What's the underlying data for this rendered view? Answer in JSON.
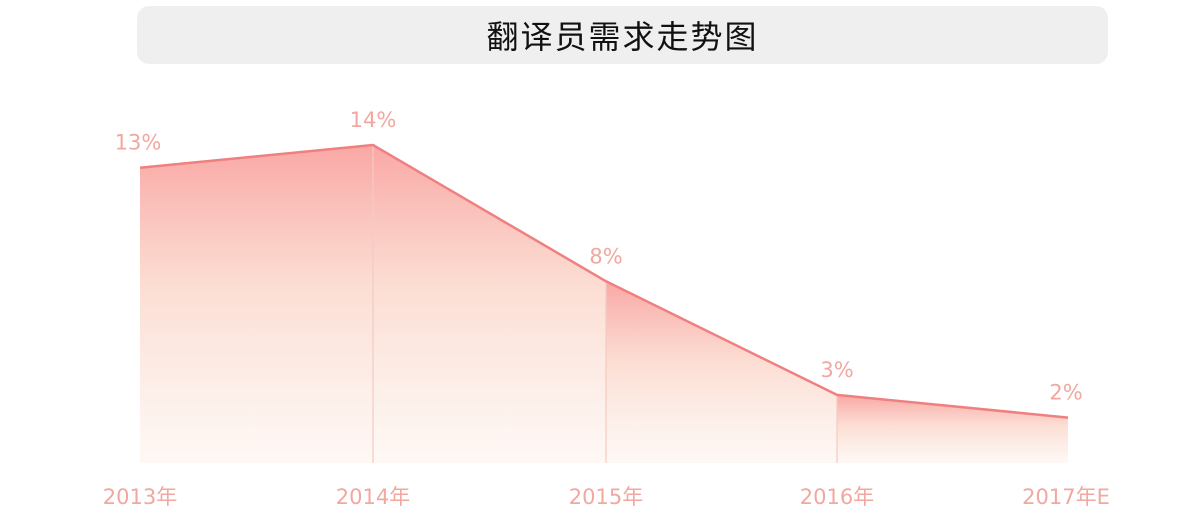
{
  "chart_data": {
    "type": "area",
    "title": "翻译员需求走势图",
    "categories": [
      "2013年",
      "2014年",
      "2015年",
      "2016年",
      "2017年E"
    ],
    "values": [
      13,
      14,
      8,
      3,
      2
    ],
    "data_labels": [
      "13%",
      "14%",
      "8%",
      "3%",
      "2%"
    ],
    "xlabel": "",
    "ylabel": "",
    "ylim": [
      0,
      14
    ],
    "grid": false,
    "legend": "none",
    "colors": {
      "line": "#f08080",
      "fill_top": "#f9a3a0",
      "fill_bottom": "#fdf3ee",
      "label": "#f0a8a0",
      "title_bg": "#efefef"
    }
  }
}
